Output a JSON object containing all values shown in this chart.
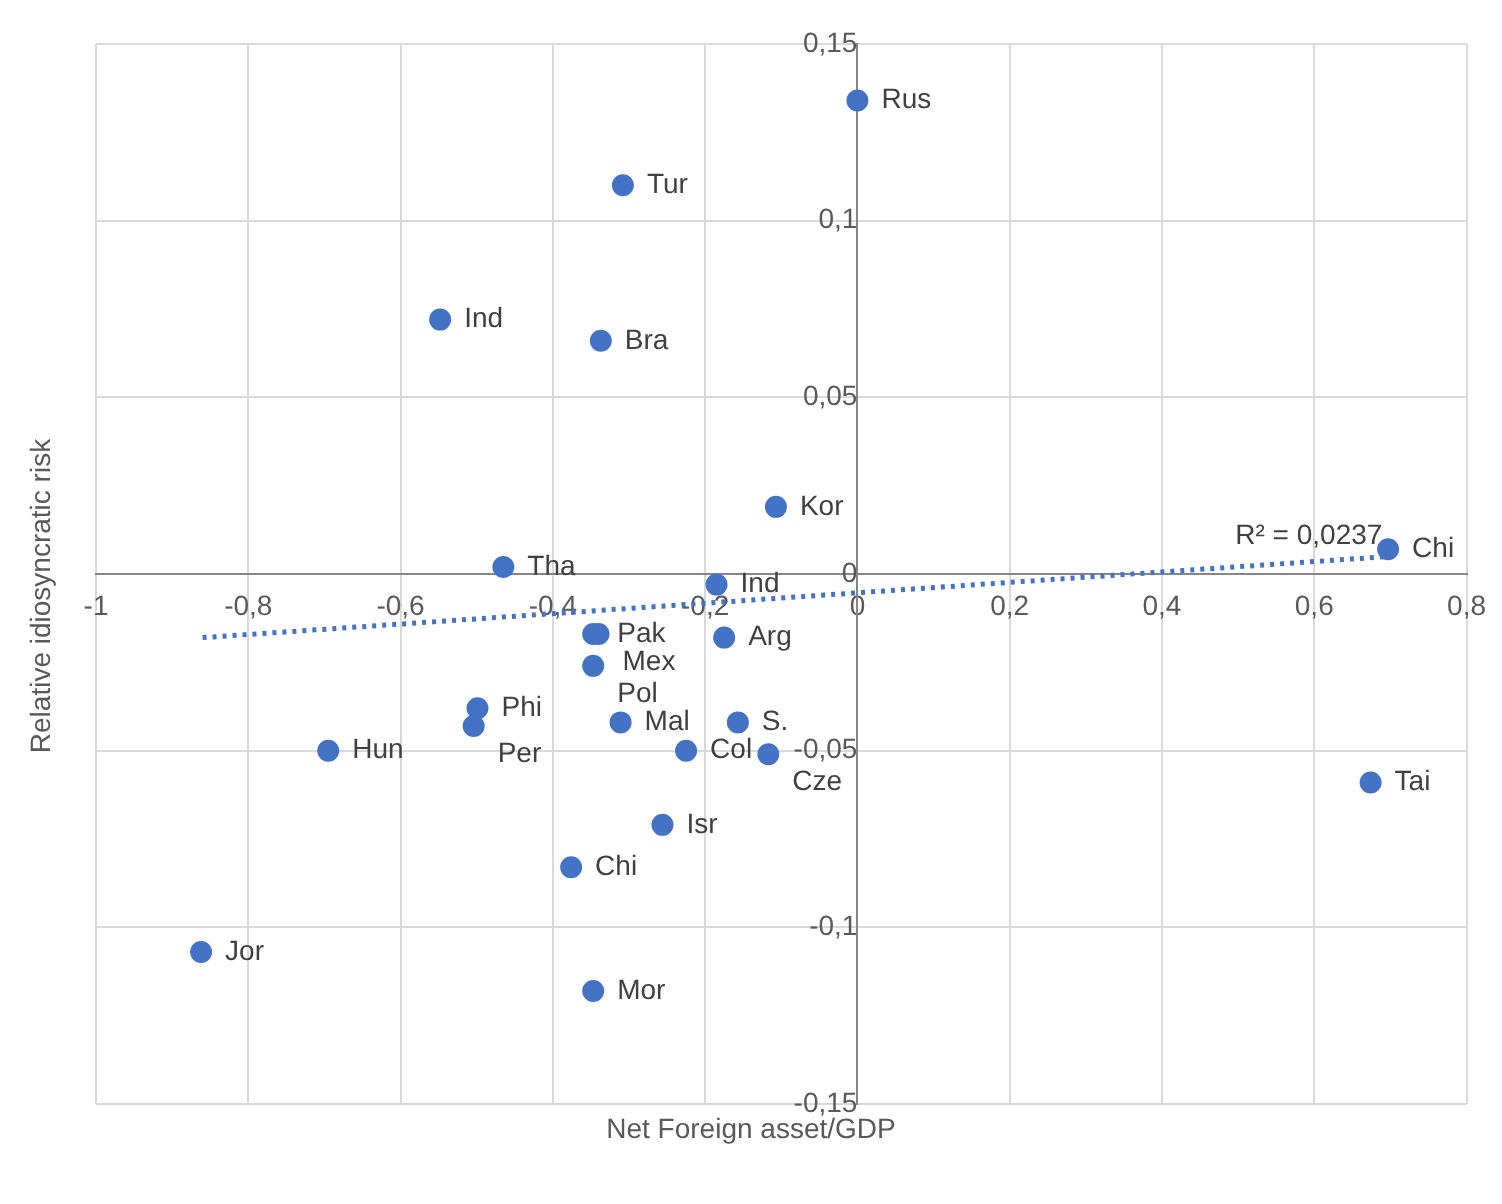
{
  "chart_data": {
    "type": "scatter",
    "xlabel": "Net Foreign asset/GDP",
    "ylabel": "Relative idiosyncratic risk",
    "x": [
      0,
      -0.308,
      -0.548,
      -0.337,
      -0.107,
      0.697,
      -0.465,
      -0.185,
      -0.347,
      -0.34,
      -0.175,
      -0.347,
      -0.499,
      -0.504,
      -0.311,
      -0.157,
      -0.695,
      -0.225,
      -0.117,
      0.674,
      -0.256,
      -0.376,
      -0.862,
      -0.347
    ],
    "series": [
      {
        "color": "#4472c4",
        "marker": "circle",
        "values": [
          0.134,
          0.11,
          0.072,
          0.066,
          0.019,
          0.007,
          0.002,
          -0.003,
          -0.017,
          -0.017,
          -0.018,
          -0.026,
          -0.038,
          -0.043,
          -0.042,
          -0.042,
          -0.05,
          -0.05,
          -0.051,
          -0.059,
          -0.071,
          -0.083,
          -0.107,
          -0.118
        ]
      },
      {
        "type": "line",
        "color": "#4472c4",
        "line_style": "dotted",
        "marker": "none",
        "x": [
          -0.86,
          0.7
        ],
        "values": [
          -0.018,
          0.005
        ]
      }
    ],
    "grid": true,
    "xlim": [
      -1,
      0.8
    ],
    "ylim": [
      -0.15,
      0.15
    ],
    "xticks": [
      -1,
      {
        "value": -0.8,
        "label": "-0,8"
      },
      {
        "value": -0.6,
        "label": "-0,6"
      },
      {
        "value": -0.4,
        "label": "-0,4"
      },
      {
        "value": -0.2,
        "label": "-0,2"
      },
      0,
      {
        "value": 0.2,
        "label": "0,2"
      },
      {
        "value": 0.4,
        "label": "0,4"
      },
      {
        "value": 0.6,
        "label": "0,6"
      },
      {
        "value": 0.8,
        "label": "0,8"
      }
    ],
    "yticks": [
      {
        "value": -0.15,
        "label": "-0,15"
      },
      {
        "value": -0.1,
        "label": "-0,1"
      },
      {
        "value": -0.05,
        "label": "-0,05"
      },
      0,
      {
        "value": 0.05,
        "label": "0,05"
      },
      {
        "value": 0.1,
        "label": "0,1"
      },
      {
        "value": 0.15,
        "label": "0,15"
      }
    ],
    "annotations": [
      {
        "text": "Rus",
        "x": 0,
        "y": 0.134
      },
      {
        "text": "Tur",
        "x": -0.308,
        "y": 0.11
      },
      {
        "text": "Ind",
        "x": -0.548,
        "y": 0.072
      },
      {
        "text": "Bra",
        "x": -0.337,
        "y": 0.066
      },
      {
        "text": "Kor",
        "x": -0.107,
        "y": 0.019
      },
      {
        "text": "Chi",
        "x": 0.697,
        "y": 0.007
      },
      {
        "text": "Tha",
        "x": -0.465,
        "y": 0.002
      },
      {
        "text": "Ind",
        "x": -0.185,
        "y": -0.003
      },
      {
        "text": "Pak",
        "x": -0.347,
        "y": -0.017
      },
      {
        "text": "Mex",
        "x": -0.34,
        "y": -0.017
      },
      {
        "text": "Arg",
        "x": -0.175,
        "y": -0.018
      },
      {
        "text": "Pol",
        "x": -0.347,
        "y": -0.026
      },
      {
        "text": "Phi",
        "x": -0.499,
        "y": -0.038
      },
      {
        "text": "Per",
        "x": -0.504,
        "y": -0.043
      },
      {
        "text": "Mal",
        "x": -0.311,
        "y": -0.042
      },
      {
        "text": "S.",
        "x": -0.157,
        "y": -0.042
      },
      {
        "text": "Hun",
        "x": -0.695,
        "y": -0.05
      },
      {
        "text": "Col",
        "x": -0.225,
        "y": -0.05
      },
      {
        "text": "Cze",
        "x": -0.117,
        "y": -0.051
      },
      {
        "text": "Tai",
        "x": 0.674,
        "y": -0.059
      },
      {
        "text": "Isr",
        "x": -0.256,
        "y": -0.071
      },
      {
        "text": "Chi",
        "x": -0.376,
        "y": -0.083
      },
      {
        "text": "Jor",
        "x": -0.862,
        "y": -0.107
      },
      {
        "text": "Mor",
        "x": -0.347,
        "y": -0.118
      },
      "R² = 0,0237"
    ]
  }
}
